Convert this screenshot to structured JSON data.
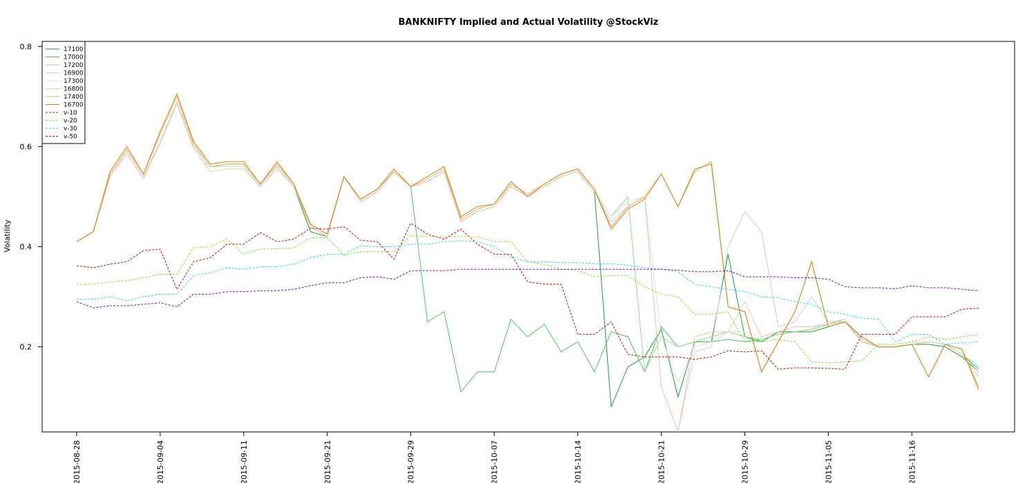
{
  "chart_data": {
    "type": "line",
    "title": "BANKNIFTY Implied and Actual Volatility @StockViz",
    "xlabel": "",
    "ylabel": "Volatility",
    "ylim": [
      0.03,
      0.81
    ],
    "y_ticks": [
      0.2,
      0.4,
      0.6,
      0.8
    ],
    "y_tick_labels": [
      "0.2",
      "0.4",
      "0.6",
      "0.8"
    ],
    "x_tick_labels": [
      "2015-08-28",
      "2015-09-04",
      "2015-09-11",
      "2015-09-21",
      "2015-09-29",
      "2015-10-07",
      "2015-10-14",
      "2015-10-21",
      "2015-10-29",
      "2015-11-05",
      "2015-11-16"
    ],
    "x_tick_indices": [
      0,
      5,
      10,
      15,
      20,
      25,
      30,
      35,
      40,
      45,
      50
    ],
    "n_points": 55,
    "grid": false,
    "legend_position": "top-left",
    "series": [
      {
        "name": "17100",
        "color": "#1a9e2e",
        "dash": "",
        "values": [
          0.41,
          0.43,
          0.54,
          0.59,
          0.54,
          0.61,
          0.69,
          0.6,
          0.56,
          0.56,
          0.56,
          0.52,
          0.56,
          0.52,
          0.43,
          0.42,
          0.54,
          0.49,
          0.51,
          0.55,
          0.52,
          0.53,
          0.55,
          0.45,
          0.47,
          0.48,
          0.52,
          0.5,
          0.52,
          0.54,
          0.55,
          0.51,
          0.08,
          0.16,
          0.18,
          0.235,
          0.1,
          0.21,
          0.21,
          0.385,
          0.22,
          0.21,
          0.23,
          0.23,
          0.23,
          0.24,
          0.25,
          0.21,
          0.2,
          0.2,
          0.205,
          0.205,
          0.2,
          0.18,
          0.15
        ]
      },
      {
        "name": "17000",
        "color": "#4cc25a",
        "dash": "",
        "values": [
          0.41,
          0.43,
          0.54,
          0.59,
          0.54,
          0.61,
          0.69,
          0.6,
          0.56,
          0.565,
          0.565,
          0.525,
          0.565,
          0.525,
          0.44,
          0.42,
          0.54,
          0.49,
          0.51,
          0.55,
          0.52,
          0.25,
          0.27,
          0.11,
          0.15,
          0.15,
          0.255,
          0.22,
          0.245,
          0.19,
          0.21,
          0.15,
          0.23,
          0.22,
          0.15,
          0.24,
          0.2,
          0.21,
          0.21,
          0.215,
          0.21,
          0.215,
          0.225,
          0.23,
          0.235,
          0.245,
          0.255,
          0.215,
          0.2,
          0.2,
          0.205,
          0.21,
          0.205,
          0.185,
          0.155
        ]
      },
      {
        "name": "17200",
        "color": "#8fdc8b",
        "dash": "",
        "values": [
          0.41,
          0.43,
          0.54,
          0.59,
          0.54,
          0.61,
          0.69,
          0.6,
          0.56,
          0.56,
          0.56,
          0.52,
          0.56,
          0.52,
          0.44,
          0.42,
          0.54,
          0.49,
          0.51,
          0.55,
          0.52,
          0.53,
          0.55,
          0.45,
          0.47,
          0.48,
          0.52,
          0.5,
          0.52,
          0.54,
          0.55,
          0.51,
          0.46,
          0.5,
          0.15,
          0.22,
          0.2,
          0.21,
          0.22,
          0.23,
          0.22,
          0.215,
          0.225,
          0.23,
          0.235,
          0.245,
          0.255,
          0.215,
          0.2,
          0.2,
          0.205,
          0.21,
          0.205,
          0.185,
          0.16
        ]
      },
      {
        "name": "16900",
        "color": "#cccccc",
        "dash": "",
        "values": [
          0.41,
          0.43,
          0.54,
          0.59,
          0.54,
          0.61,
          0.69,
          0.6,
          0.56,
          0.56,
          0.56,
          0.52,
          0.56,
          0.52,
          0.44,
          0.42,
          0.54,
          0.49,
          0.51,
          0.55,
          0.52,
          0.53,
          0.55,
          0.45,
          0.47,
          0.48,
          0.52,
          0.5,
          0.52,
          0.54,
          0.55,
          0.51,
          0.45,
          0.48,
          0.5,
          0.12,
          0.03,
          0.19,
          0.2,
          0.4,
          0.47,
          0.43,
          0.24,
          0.25,
          0.3,
          0.25,
          0.25,
          0.21,
          0.2,
          0.2,
          0.205,
          0.21,
          0.205,
          0.185,
          0.14
        ]
      },
      {
        "name": "17300",
        "color": "#dddddd",
        "dash": "",
        "values": [
          0.41,
          0.43,
          0.54,
          0.59,
          0.54,
          0.61,
          0.69,
          0.6,
          0.56,
          0.56,
          0.56,
          0.52,
          0.56,
          0.52,
          0.44,
          0.42,
          0.54,
          0.49,
          0.51,
          0.55,
          0.52,
          0.53,
          0.55,
          0.45,
          0.47,
          0.48,
          0.52,
          0.5,
          0.52,
          0.54,
          0.55,
          0.51,
          0.46,
          0.49,
          0.5,
          0.22,
          0.13,
          0.2,
          0.21,
          0.23,
          0.23,
          0.22,
          0.23,
          0.24,
          0.24,
          0.25,
          0.255,
          0.215,
          0.2,
          0.2,
          0.21,
          0.21,
          0.205,
          0.185,
          0.15
        ]
      },
      {
        "name": "16800",
        "color": "#e8c8b4",
        "dash": "",
        "values": [
          0.41,
          0.43,
          0.54,
          0.585,
          0.535,
          0.605,
          0.685,
          0.595,
          0.55,
          0.555,
          0.555,
          0.52,
          0.555,
          0.52,
          0.44,
          0.42,
          0.54,
          0.49,
          0.51,
          0.55,
          0.52,
          0.53,
          0.55,
          0.45,
          0.47,
          0.48,
          0.52,
          0.5,
          0.52,
          0.54,
          0.55,
          0.51,
          0.44,
          0.48,
          0.5,
          0.12,
          0.03,
          0.22,
          0.23,
          0.23,
          0.29,
          0.22,
          0.23,
          0.24,
          0.24,
          0.245,
          0.25,
          0.215,
          0.2,
          0.2,
          0.205,
          0.21,
          0.205,
          0.185,
          0.14
        ]
      },
      {
        "name": "17400",
        "color": "#f0b060",
        "dash": "",
        "values": [
          0.41,
          0.43,
          0.545,
          0.595,
          0.545,
          0.625,
          0.7,
          0.605,
          0.56,
          0.565,
          0.565,
          0.525,
          0.565,
          0.525,
          0.445,
          0.425,
          0.54,
          0.495,
          0.515,
          0.55,
          0.52,
          0.535,
          0.555,
          0.455,
          0.475,
          0.485,
          0.525,
          0.505,
          0.525,
          0.545,
          0.555,
          0.515,
          0.44,
          0.48,
          0.5,
          0.545,
          0.48,
          0.55,
          0.57,
          0.28,
          0.27,
          0.15,
          0.21,
          0.27,
          0.37,
          0.24,
          0.25,
          0.22,
          0.2,
          0.2,
          0.205,
          0.14,
          0.205,
          0.195,
          0.12
        ]
      },
      {
        "name": "16700",
        "color": "#d97d10",
        "dash": "",
        "values": [
          0.41,
          0.43,
          0.55,
          0.6,
          0.545,
          0.63,
          0.705,
          0.61,
          0.565,
          0.57,
          0.57,
          0.525,
          0.57,
          0.525,
          0.445,
          0.425,
          0.54,
          0.495,
          0.515,
          0.555,
          0.52,
          0.54,
          0.56,
          0.46,
          0.48,
          0.485,
          0.53,
          0.5,
          0.525,
          0.545,
          0.555,
          0.515,
          0.435,
          0.475,
          0.495,
          0.545,
          0.48,
          0.555,
          0.565,
          0.28,
          0.27,
          0.15,
          0.21,
          0.27,
          0.37,
          0.24,
          0.25,
          0.22,
          0.2,
          0.2,
          0.205,
          0.14,
          0.205,
          0.195,
          0.115
        ]
      },
      {
        "name": "v-10",
        "color": "#cc0000",
        "dash": "3,2",
        "values": [
          0.362,
          0.358,
          0.365,
          0.37,
          0.392,
          0.395,
          0.315,
          0.37,
          0.378,
          0.405,
          0.405,
          0.428,
          0.41,
          0.415,
          0.437,
          0.435,
          0.44,
          0.413,
          0.41,
          0.375,
          0.447,
          0.425,
          0.415,
          0.435,
          0.405,
          0.385,
          0.385,
          0.33,
          0.325,
          0.325,
          0.225,
          0.225,
          0.25,
          0.185,
          0.18,
          0.18,
          0.18,
          0.175,
          0.18,
          0.192,
          0.19,
          0.192,
          0.155,
          0.158,
          0.158,
          0.157,
          0.155,
          0.225,
          0.225,
          0.225,
          0.26,
          0.26,
          0.26,
          0.275,
          0.277
        ]
      },
      {
        "name": "v-20",
        "color": "#88dd22",
        "dash": "3,2",
        "values": [
          0.325,
          0.325,
          0.33,
          0.332,
          0.338,
          0.345,
          0.345,
          0.398,
          0.4,
          0.415,
          0.385,
          0.395,
          0.396,
          0.397,
          0.418,
          0.418,
          0.383,
          0.39,
          0.39,
          0.39,
          0.422,
          0.42,
          0.42,
          0.42,
          0.42,
          0.41,
          0.41,
          0.37,
          0.365,
          0.355,
          0.352,
          0.34,
          0.342,
          0.342,
          0.32,
          0.305,
          0.3,
          0.265,
          0.265,
          0.27,
          0.21,
          0.21,
          0.215,
          0.21,
          0.17,
          0.168,
          0.17,
          0.172,
          0.205,
          0.205,
          0.21,
          0.22,
          0.215,
          0.22,
          0.225
        ]
      },
      {
        "name": "v-30",
        "color": "#22dddd",
        "dash": "3,2",
        "values": [
          0.295,
          0.295,
          0.3,
          0.292,
          0.3,
          0.305,
          0.305,
          0.342,
          0.348,
          0.358,
          0.355,
          0.36,
          0.36,
          0.365,
          0.378,
          0.385,
          0.385,
          0.402,
          0.4,
          0.4,
          0.405,
          0.405,
          0.41,
          0.412,
          0.41,
          0.4,
          0.38,
          0.37,
          0.37,
          0.368,
          0.368,
          0.366,
          0.366,
          0.363,
          0.358,
          0.355,
          0.35,
          0.325,
          0.32,
          0.315,
          0.31,
          0.3,
          0.298,
          0.29,
          0.285,
          0.27,
          0.265,
          0.258,
          0.255,
          0.21,
          0.225,
          0.225,
          0.205,
          0.208,
          0.21
        ]
      },
      {
        "name": "v-50",
        "color": "#7700cc",
        "dash": "3,2",
        "values": [
          0.29,
          0.278,
          0.282,
          0.282,
          0.285,
          0.288,
          0.28,
          0.305,
          0.305,
          0.31,
          0.31,
          0.312,
          0.312,
          0.315,
          0.322,
          0.328,
          0.328,
          0.338,
          0.34,
          0.335,
          0.352,
          0.352,
          0.352,
          0.355,
          0.355,
          0.355,
          0.355,
          0.355,
          0.355,
          0.355,
          0.355,
          0.355,
          0.355,
          0.355,
          0.355,
          0.355,
          0.353,
          0.35,
          0.35,
          0.352,
          0.34,
          0.34,
          0.34,
          0.338,
          0.338,
          0.335,
          0.32,
          0.318,
          0.318,
          0.316,
          0.322,
          0.318,
          0.318,
          0.315,
          0.312
        ]
      }
    ]
  }
}
